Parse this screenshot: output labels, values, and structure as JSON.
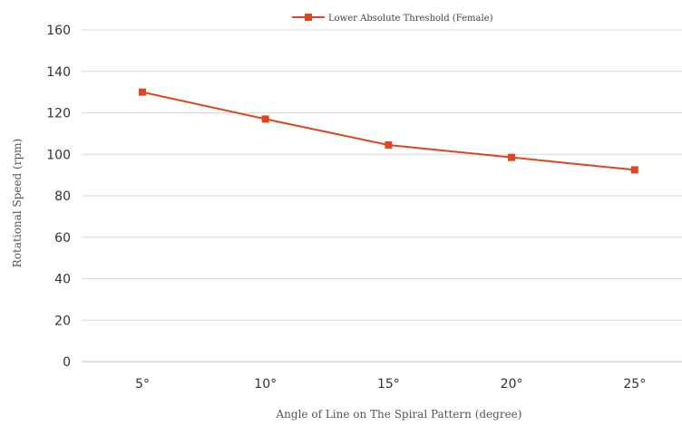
{
  "chart_data": {
    "type": "line",
    "categories": [
      "5°",
      "10°",
      "15°",
      "20°",
      "25°"
    ],
    "series": [
      {
        "name": "Lower Absolute Threshold (Female)",
        "values": [
          130,
          117,
          104.5,
          98.5,
          92.5
        ],
        "color": "#e0461e"
      }
    ],
    "xlabel": "Angle of Line on The Spiral Pattern (degree)",
    "ylabel": "Rotational Speed (rpm)",
    "ylim": [
      0,
      160
    ],
    "yticks": [
      0,
      20,
      40,
      60,
      80,
      100,
      120,
      140,
      160
    ],
    "grid": true,
    "legend": "top-center",
    "marker": "square"
  }
}
